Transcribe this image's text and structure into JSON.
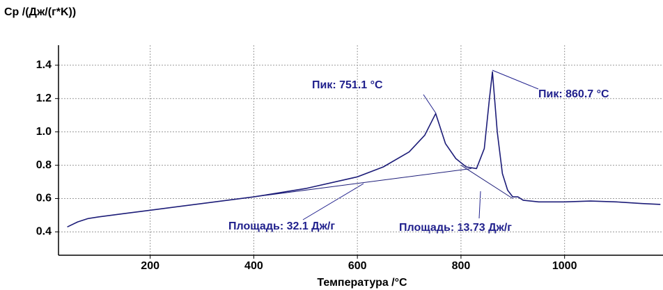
{
  "chart_data": {
    "type": "line",
    "ylabel": "Cp /(Дж/(г*K))",
    "xlabel": "Температура /°C",
    "color": "#1c1c78",
    "x": [
      40,
      60,
      80,
      100,
      150,
      200,
      300,
      400,
      500,
      600,
      650,
      700,
      730,
      751.1,
      770,
      790,
      810,
      830,
      845,
      855,
      860.7,
      870,
      880,
      890,
      900,
      910,
      920,
      950,
      1000,
      1050,
      1100,
      1150,
      1185
    ],
    "values": [
      0.43,
      0.46,
      0.48,
      0.49,
      0.51,
      0.53,
      0.57,
      0.61,
      0.66,
      0.73,
      0.79,
      0.88,
      0.98,
      1.11,
      0.93,
      0.84,
      0.79,
      0.78,
      0.9,
      1.2,
      1.36,
      1.0,
      0.75,
      0.65,
      0.61,
      0.61,
      0.59,
      0.58,
      0.58,
      0.585,
      0.58,
      0.57,
      0.565
    ],
    "baselines": [
      {
        "x": [
          400,
          820
        ],
        "values": [
          0.61,
          0.78
        ]
      },
      {
        "x": [
          800,
          900
        ],
        "values": [
          0.8,
          0.6
        ]
      }
    ],
    "annotations": [
      "Пик: 751.1 °C",
      "Пик: 860.7 °C",
      "Площадь: 32.1 Дж/г",
      "Площадь: 13.73 Дж/г"
    ],
    "xlim": [
      23,
      1190
    ],
    "ylim": [
      0.26,
      1.52
    ],
    "xticks": [
      200,
      400,
      600,
      800,
      1000
    ],
    "yticks": [
      0.4,
      0.6,
      0.8,
      {
        "value": 1,
        "label": "1.0"
      },
      1.2,
      1.4
    ],
    "grid": true
  }
}
